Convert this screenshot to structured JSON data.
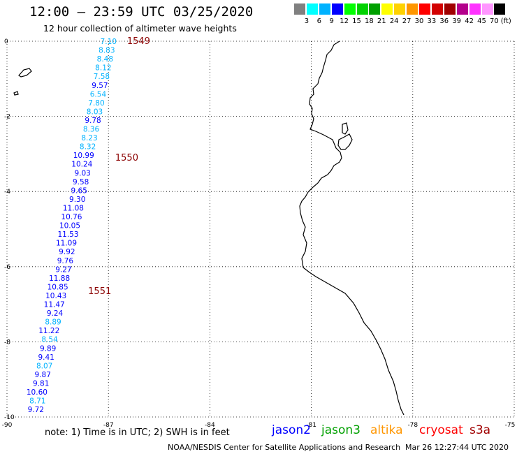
{
  "title": "12:00 – 23:59 UTC 03/25/2020",
  "subtitle": "12 hour collection of altimeter wave heights",
  "colorbar": {
    "unit": "(ft)",
    "colors": [
      "#808080",
      "#00ffff",
      "#00b2ff",
      "#0000ff",
      "#00ff00",
      "#00d200",
      "#00a000",
      "#ffff00",
      "#ffd200",
      "#ff9600",
      "#ff0000",
      "#d20000",
      "#a00000",
      "#b4008c",
      "#ff32ff",
      "#ff96ff",
      "#000000"
    ],
    "labels": [
      "3",
      "6",
      "9",
      "12",
      "15",
      "18",
      "21",
      "24",
      "27",
      "30",
      "33",
      "36",
      "39",
      "42",
      "45",
      "70"
    ]
  },
  "map": {
    "lon_range": [
      -90,
      -75
    ],
    "lat_range": [
      -10,
      0
    ],
    "x_ticks": [
      "-90",
      "-87",
      "-84",
      "-81",
      "-78",
      "-75"
    ],
    "y_ticks": [
      "0",
      "-2",
      "-4",
      "-6",
      "-8",
      "-10"
    ],
    "pass_labels": [
      {
        "text": "1549",
        "lat": 0.0,
        "lon": -86.45
      },
      {
        "text": "1550",
        "lat": -3.1,
        "lon": -86.8
      },
      {
        "text": "1551",
        "lat": -6.65,
        "lon": -87.6
      }
    ],
    "wave_heights": [
      {
        "v": "7.10",
        "c": "#00b2ff"
      },
      {
        "v": "8.83",
        "c": "#00b2ff"
      },
      {
        "v": "8.48",
        "c": "#00b2ff"
      },
      {
        "v": "8.12",
        "c": "#00b2ff"
      },
      {
        "v": "7.58",
        "c": "#00b2ff"
      },
      {
        "v": "9.57",
        "c": "#0000ff"
      },
      {
        "v": "6.54",
        "c": "#00b2ff"
      },
      {
        "v": "7.80",
        "c": "#00b2ff"
      },
      {
        "v": "8.03",
        "c": "#00b2ff"
      },
      {
        "v": "9.78",
        "c": "#0000ff"
      },
      {
        "v": "8.36",
        "c": "#00b2ff"
      },
      {
        "v": "8.23",
        "c": "#00b2ff"
      },
      {
        "v": "8.32",
        "c": "#00b2ff"
      },
      {
        "v": "10.99",
        "c": "#0000ff"
      },
      {
        "v": "10.24",
        "c": "#0000ff"
      },
      {
        "v": "9.03",
        "c": "#0000ff"
      },
      {
        "v": "9.58",
        "c": "#0000ff"
      },
      {
        "v": "9.65",
        "c": "#0000ff"
      },
      {
        "v": "9.30",
        "c": "#0000ff"
      },
      {
        "v": "11.08",
        "c": "#0000ff"
      },
      {
        "v": "10.76",
        "c": "#0000ff"
      },
      {
        "v": "10.05",
        "c": "#0000ff"
      },
      {
        "v": "11.53",
        "c": "#0000ff"
      },
      {
        "v": "11.09",
        "c": "#0000ff"
      },
      {
        "v": "9.92",
        "c": "#0000ff"
      },
      {
        "v": "9.76",
        "c": "#0000ff"
      },
      {
        "v": "9.27",
        "c": "#0000ff"
      },
      {
        "v": "11.88",
        "c": "#0000ff"
      },
      {
        "v": "10.85",
        "c": "#0000ff"
      },
      {
        "v": "10.43",
        "c": "#0000ff"
      },
      {
        "v": "11.47",
        "c": "#0000ff"
      },
      {
        "v": "9.24",
        "c": "#0000ff"
      },
      {
        "v": "8.89",
        "c": "#00b2ff"
      },
      {
        "v": "11.22",
        "c": "#0000ff"
      },
      {
        "v": "8.54",
        "c": "#00b2ff"
      },
      {
        "v": "9.89",
        "c": "#0000ff"
      },
      {
        "v": "9.41",
        "c": "#0000ff"
      },
      {
        "v": "8.07",
        "c": "#00b2ff"
      },
      {
        "v": "9.87",
        "c": "#0000ff"
      },
      {
        "v": "9.81",
        "c": "#0000ff"
      },
      {
        "v": "10.60",
        "c": "#0000ff"
      },
      {
        "v": "8.71",
        "c": "#00b2ff"
      },
      {
        "v": "9.72",
        "c": "#0000ff"
      }
    ]
  },
  "note": "note:  1) Time is in UTC;  2) SWH is in feet",
  "satellites": [
    {
      "name": "jason2",
      "color": "#0000ff"
    },
    {
      "name": "jason3",
      "color": "#00a000"
    },
    {
      "name": "altika",
      "color": "#ff9600"
    },
    {
      "name": "cryosat",
      "color": "#ff0000"
    },
    {
      "name": "s3a",
      "color": "#a00000"
    }
  ],
  "credit": "NOAA/NESDIS Center for Satellite Applications and Research",
  "credit_time": "Mar 26 12:27:44 UTC 2020"
}
